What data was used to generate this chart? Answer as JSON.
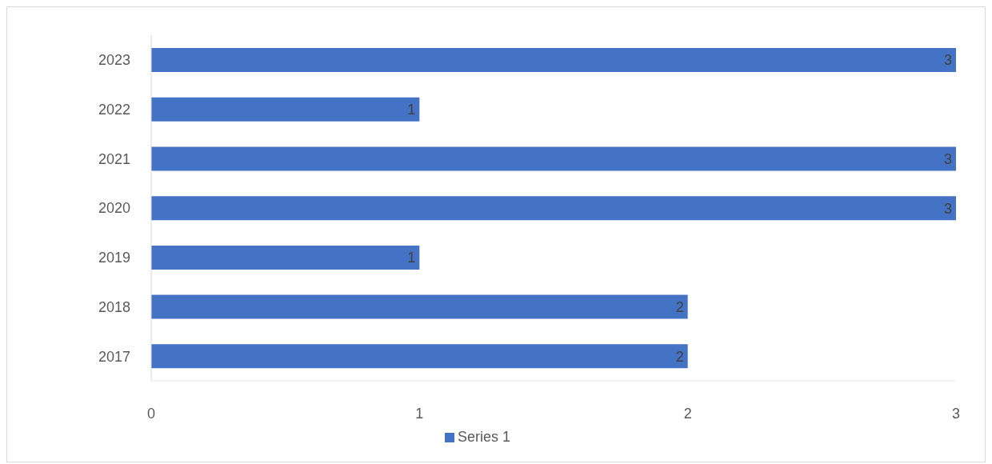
{
  "chart_data": {
    "type": "bar",
    "orientation": "horizontal",
    "categories": [
      "2023",
      "2022",
      "2021",
      "2020",
      "2019",
      "2018",
      "2017"
    ],
    "series": [
      {
        "name": "Series 1",
        "color": "#4472c4",
        "values": [
          3,
          1,
          3,
          3,
          1,
          2,
          2
        ]
      }
    ],
    "xlim": [
      0,
      3
    ],
    "xticks": [
      0,
      1,
      2,
      3
    ],
    "legend": "bottom",
    "data_labels": true
  }
}
